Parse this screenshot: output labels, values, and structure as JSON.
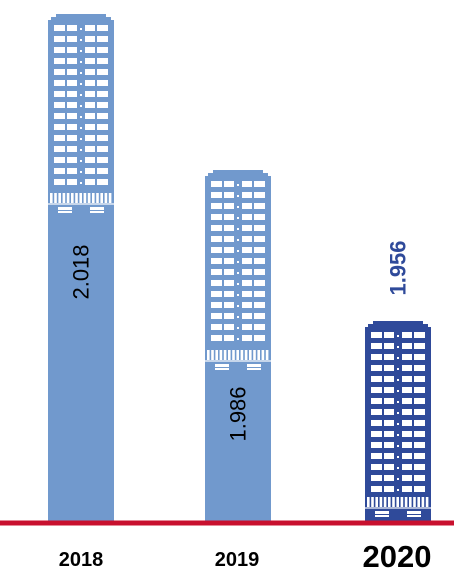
{
  "chart_data": {
    "type": "bar",
    "categories": [
      "2018",
      "2019",
      "2020"
    ],
    "values": [
      2018,
      1986,
      1956
    ],
    "value_labels": [
      "2.018",
      "1.986",
      "1.956"
    ],
    "highlight_category": "2020",
    "colors": {
      "bar": "#7199cd",
      "highlight": "#2f4a9a",
      "window": "#ffffff",
      "baseline": "#c8102e",
      "label": "#000000"
    }
  }
}
